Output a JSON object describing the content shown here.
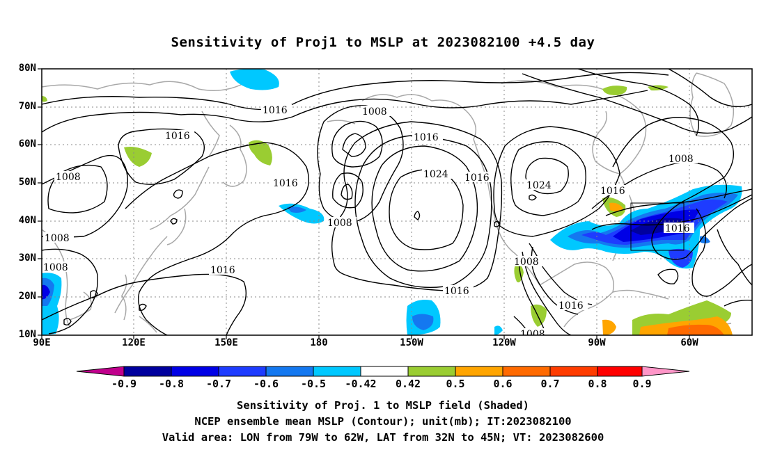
{
  "title": "Sensitivity of Proj1 to MSLP at 2023082100 +4.5 day",
  "axes": {
    "lat_labels": [
      "80N",
      "70N",
      "60N",
      "50N",
      "40N",
      "30N",
      "20N",
      "10N"
    ],
    "lon_labels": [
      "90E",
      "120E",
      "150E",
      "180",
      "150W",
      "120W",
      "90W",
      "60W"
    ]
  },
  "contour_labels": [
    "1016",
    "1008",
    "1016",
    "1008",
    "1008",
    "1008",
    "1016",
    "1016",
    "1024",
    "1016",
    "1024",
    "1008",
    "1016",
    "1008",
    "1016",
    "1016",
    "1008",
    "1008",
    "1016"
  ],
  "colorbar": {
    "labels": [
      "-0.9",
      "-0.8",
      "-0.7",
      "-0.6",
      "-0.5",
      "-0.42",
      "0.42",
      "0.5",
      "0.6",
      "0.7",
      "0.8",
      "0.9"
    ],
    "colors": [
      "#c0008c",
      "#00009e",
      "#0000e6",
      "#1e3cff",
      "#1478f0",
      "#00c8ff",
      "#ffffff",
      "#9acd32",
      "#ffa500",
      "#ff6a00",
      "#ff3c00",
      "#ff0000",
      "#ff96c8"
    ]
  },
  "captions": {
    "line1": "Sensitivity of Proj. 1 to MSLP field (Shaded)",
    "line2": "NCEP ensemble mean MSLP (Contour); unit(mb); IT:2023082100",
    "line3": "Valid area: LON from 79W to 62W, LAT from 32N to 45N; VT: 2023082600"
  }
}
